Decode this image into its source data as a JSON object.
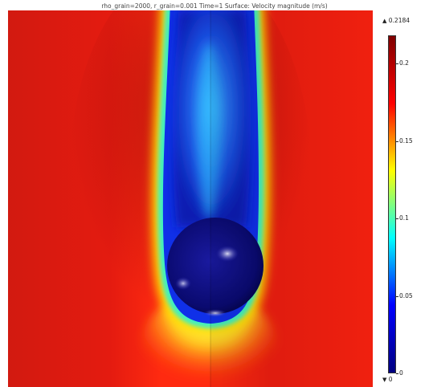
{
  "plot": {
    "title": "rho_grain=2000, r_grain=0.001 Time=1   Surface: Velocity magnitude (m/s)"
  },
  "colorbar": {
    "max_label": "0.2184",
    "min_label": "0",
    "max_symbol": "▲",
    "min_symbol": "▼",
    "range": [
      0,
      0.2184
    ],
    "ticks": [
      "0.2",
      "0.15",
      "0.1",
      "0.05",
      "0"
    ],
    "tick_values": [
      0.2,
      0.15,
      0.1,
      0.05,
      0
    ],
    "colors": [
      "#00007f",
      "#0000ff",
      "#00ffff",
      "#ffff00",
      "#ff0000",
      "#7f0000"
    ]
  }
}
